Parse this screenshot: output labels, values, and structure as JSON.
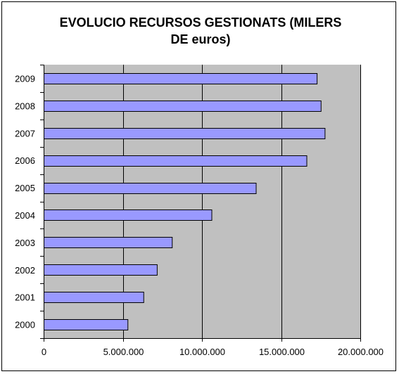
{
  "chart_data": {
    "type": "bar",
    "orientation": "horizontal",
    "title": "EVOLUCIO RECURSOS GESTIONATS (MILERS\nDE euros)",
    "categories": [
      "2000",
      "2001",
      "2002",
      "2003",
      "2004",
      "2005",
      "2006",
      "2007",
      "2008",
      "2009"
    ],
    "values": [
      5300000,
      6300000,
      7150000,
      8100000,
      10600000,
      13400000,
      16600000,
      17750000,
      17500000,
      17250000
    ],
    "xlim": [
      0,
      20000000
    ],
    "x_ticks": [
      0,
      5000000,
      10000000,
      15000000,
      20000000
    ],
    "x_tick_labels": [
      "0",
      "5.000.000",
      "10.000.000",
      "15.000.000",
      "20.000.000"
    ],
    "xlabel": "",
    "ylabel": "",
    "grid": "vertical",
    "legend": "none",
    "colors": {
      "bar": "#9999ff",
      "bar_border": "#000000",
      "plot_bg": "#c0c0c0",
      "grid": "#000000"
    }
  }
}
